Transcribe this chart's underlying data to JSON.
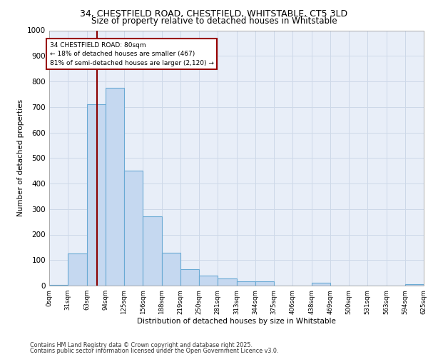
{
  "title_line1": "34, CHESTFIELD ROAD, CHESTFIELD, WHITSTABLE, CT5 3LD",
  "title_line2": "Size of property relative to detached houses in Whitstable",
  "xlabel": "Distribution of detached houses by size in Whitstable",
  "ylabel": "Number of detached properties",
  "bins": [
    0,
    31,
    63,
    94,
    125,
    156,
    188,
    219,
    250,
    281,
    313,
    344,
    375,
    406,
    438,
    469,
    500,
    531,
    563,
    594,
    625
  ],
  "bar_heights": [
    2,
    125,
    710,
    775,
    450,
    270,
    130,
    65,
    40,
    27,
    18,
    18,
    0,
    0,
    12,
    0,
    0,
    0,
    0,
    5
  ],
  "bar_color": "#c5d8f0",
  "bar_edge_color": "#6aaad4",
  "grid_color": "#cdd8e8",
  "bg_color": "#e8eef8",
  "property_line_x": 80,
  "property_line_color": "#8b0000",
  "annotation_box_text": "34 CHESTFIELD ROAD: 80sqm\n← 18% of detached houses are smaller (467)\n81% of semi-detached houses are larger (2,120) →",
  "annotation_box_color": "#990000",
  "annotation_box_fill": "#ffffff",
  "ylim": [
    0,
    1000
  ],
  "yticks": [
    0,
    100,
    200,
    300,
    400,
    500,
    600,
    700,
    800,
    900,
    1000
  ],
  "footnote_line1": "Contains HM Land Registry data © Crown copyright and database right 2025.",
  "footnote_line2": "Contains public sector information licensed under the Open Government Licence v3.0.",
  "tick_labels": [
    "0sqm",
    "31sqm",
    "63sqm",
    "94sqm",
    "125sqm",
    "156sqm",
    "188sqm",
    "219sqm",
    "250sqm",
    "281sqm",
    "313sqm",
    "344sqm",
    "375sqm",
    "406sqm",
    "438sqm",
    "469sqm",
    "500sqm",
    "531sqm",
    "563sqm",
    "594sqm",
    "625sqm"
  ]
}
